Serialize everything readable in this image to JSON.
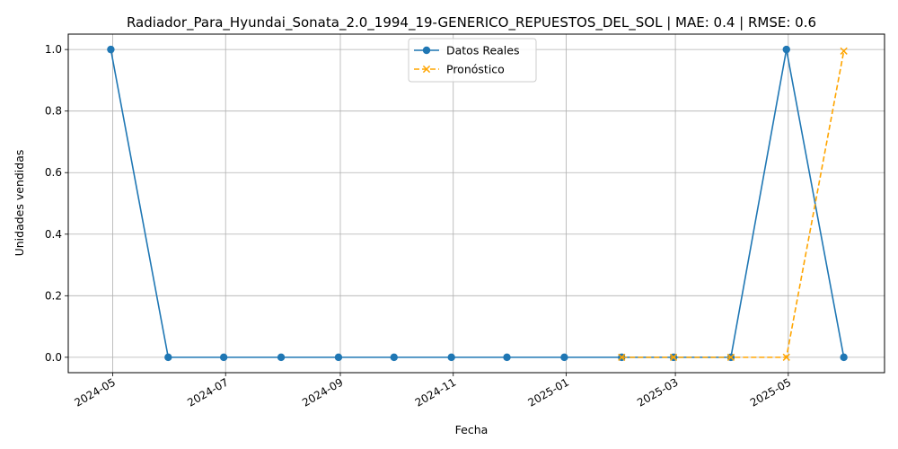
{
  "chart_data": {
    "type": "line",
    "title": "Radiador_Para_Hyundai_Sonata_2.0_1994_19-GENERICO_REPUESTOS_DEL_SOL | MAE: 0.4 | RMSE: 0.6",
    "xlabel": "Fecha",
    "ylabel": "Unidades vendidas",
    "xlim": [
      "2024-04-07",
      "2025-06-22"
    ],
    "ylim": [
      -0.05,
      1.05
    ],
    "x_ticks": [
      "2024-05",
      "2024-07",
      "2024-09",
      "2024-11",
      "2025-01",
      "2025-03",
      "2025-05"
    ],
    "y_ticks": [
      "0.0",
      "0.2",
      "0.4",
      "0.6",
      "0.8",
      "1.0"
    ],
    "grid": true,
    "legend_position": "top-center",
    "series": [
      {
        "name": "Datos Reales",
        "color": "#1f77b4",
        "style": "solid",
        "marker": "circle",
        "x": [
          "2024-04-30",
          "2024-05-31",
          "2024-06-30",
          "2024-07-31",
          "2024-08-31",
          "2024-09-30",
          "2024-10-31",
          "2024-11-30",
          "2024-12-31",
          "2025-01-31",
          "2025-02-28",
          "2025-03-31",
          "2025-04-30",
          "2025-05-31"
        ],
        "values": [
          1,
          0,
          0,
          0,
          0,
          0,
          0,
          0,
          0,
          0,
          0,
          0,
          1,
          0
        ]
      },
      {
        "name": "Pronóstico",
        "color": "#ffa500",
        "style": "dashed",
        "marker": "x",
        "x": [
          "2025-01-31",
          "2025-02-28",
          "2025-03-31",
          "2025-04-30",
          "2025-05-31"
        ],
        "values": [
          0,
          0,
          0,
          0,
          0.995
        ]
      }
    ]
  }
}
